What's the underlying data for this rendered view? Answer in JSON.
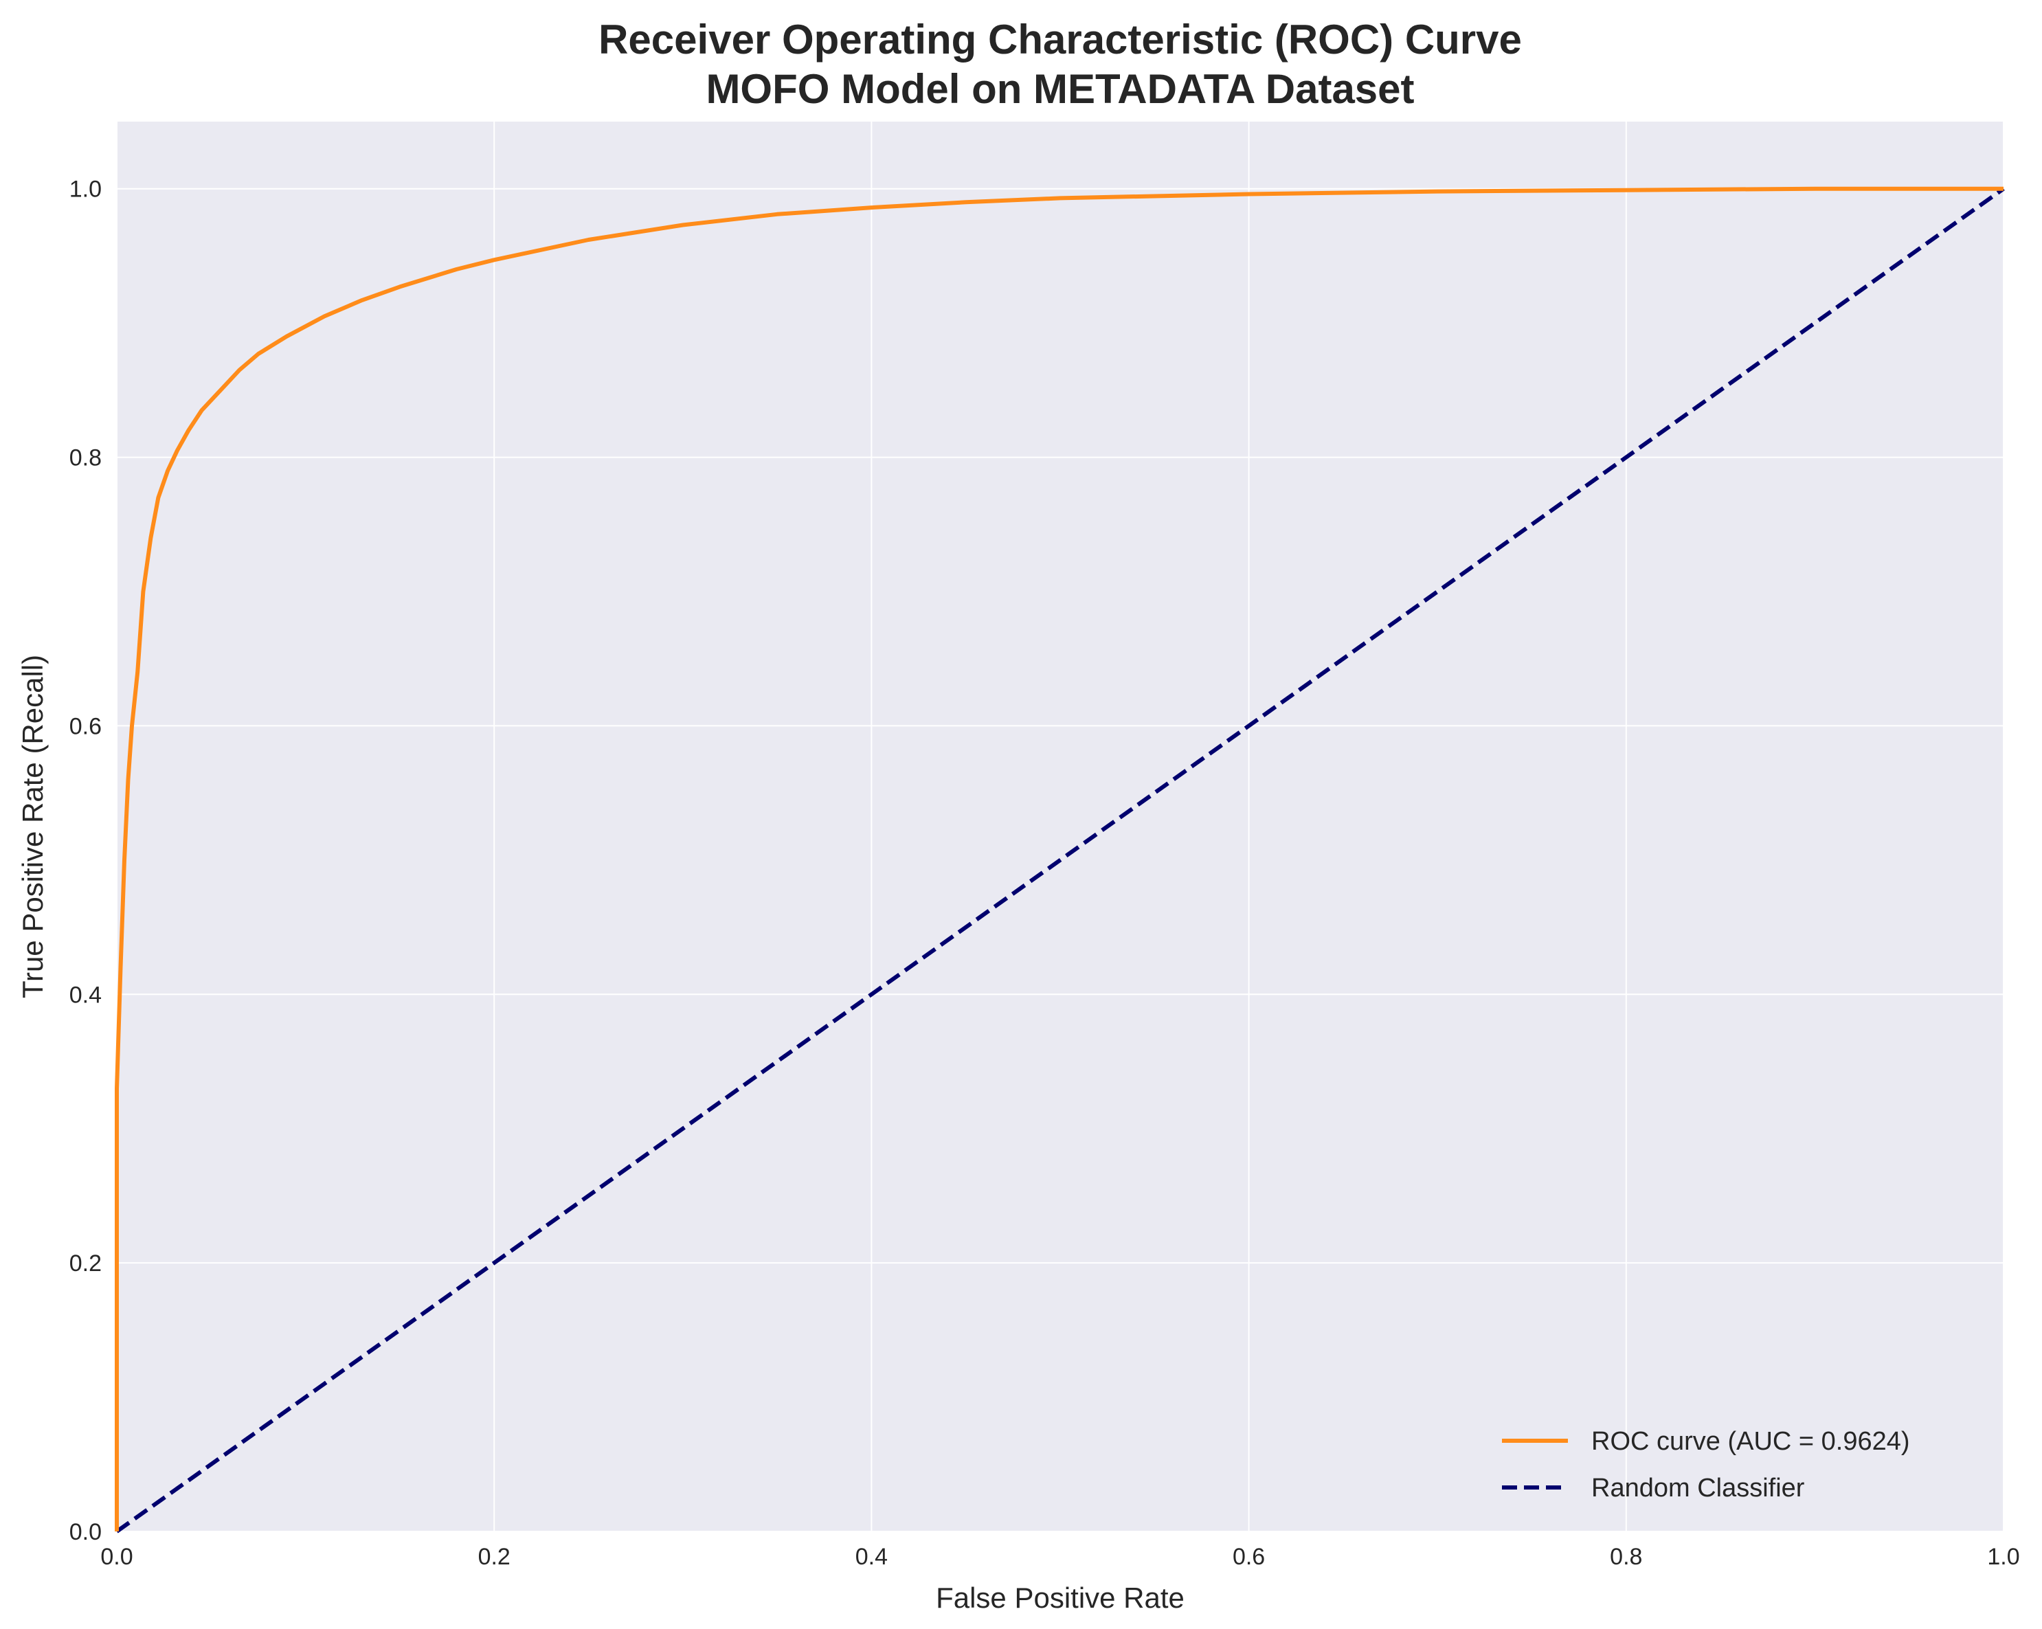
{
  "chart_data": {
    "type": "line",
    "title": "Receiver Operating Characteristic (ROC) Curve",
    "subtitle": "MOFO Model on METADATA Dataset",
    "xlabel": "False Positive Rate",
    "ylabel": "True Positive Rate (Recall)",
    "xlim": [
      0.0,
      1.0
    ],
    "ylim": [
      0.0,
      1.05
    ],
    "x_ticks": [
      "0.0",
      "0.2",
      "0.4",
      "0.6",
      "0.8",
      "1.0"
    ],
    "y_ticks": [
      "0.0",
      "0.2",
      "0.4",
      "0.6",
      "0.8",
      "1.0"
    ],
    "grid": true,
    "legend_position": "bottom-right",
    "colors": {
      "background": "#eaeaf2",
      "grid": "#ffffff"
    },
    "series": [
      {
        "name": "ROC curve (AUC = 0.9624)",
        "color": "#ff8c1a",
        "style": "solid",
        "x": [
          0.0,
          0.0,
          0.002,
          0.004,
          0.006,
          0.008,
          0.011,
          0.014,
          0.018,
          0.022,
          0.027,
          0.032,
          0.038,
          0.045,
          0.055,
          0.065,
          0.075,
          0.09,
          0.11,
          0.13,
          0.15,
          0.18,
          0.2,
          0.25,
          0.3,
          0.35,
          0.4,
          0.45,
          0.5,
          0.6,
          0.7,
          0.8,
          0.9,
          1.0
        ],
        "y": [
          0.0,
          0.33,
          0.42,
          0.5,
          0.56,
          0.6,
          0.64,
          0.7,
          0.74,
          0.77,
          0.79,
          0.805,
          0.82,
          0.835,
          0.85,
          0.865,
          0.877,
          0.89,
          0.905,
          0.917,
          0.927,
          0.94,
          0.947,
          0.962,
          0.973,
          0.981,
          0.986,
          0.99,
          0.993,
          0.996,
          0.998,
          0.999,
          1.0,
          1.0
        ]
      },
      {
        "name": "Random Classifier",
        "color": "#00006e",
        "style": "dashed",
        "x": [
          0.0,
          1.0
        ],
        "y": [
          0.0,
          1.0
        ]
      }
    ]
  }
}
